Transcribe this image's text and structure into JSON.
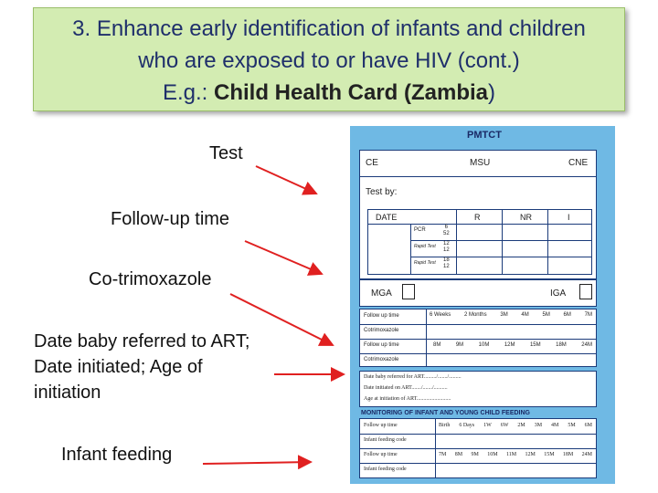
{
  "title": {
    "line1": "3. Enhance early identification of infants and children",
    "line2": "who are exposed to or have HIV (cont.)",
    "line3_prefix": "E.g.: ",
    "line3_bold": "Child Health Card (Zambia",
    "line3_suffix": ")"
  },
  "labels": {
    "test": "Test",
    "followup": "Follow-up time",
    "cotrim": "Co-trimoxazole",
    "referred_1": "Date baby referred to ART;",
    "referred_2": "Date initiated; Age of",
    "referred_3": "initiation",
    "feeding": "Infant feeding"
  },
  "card": {
    "title": "PMTCT",
    "row1": [
      "CE",
      "MSU",
      "CNE"
    ],
    "test_by": "Test by:",
    "test_header": [
      "DATE",
      "R",
      "NR",
      "I"
    ],
    "tests": [
      {
        "name": "PCR",
        "num": "6",
        "den": "52"
      },
      {
        "name": "Rapid Test",
        "num": "12",
        "den": "12"
      },
      {
        "name": "Rapid Test",
        "num": "18",
        "den": "12"
      }
    ],
    "mga": "MGA",
    "iga": "IGA",
    "fu_label": "Follow up time",
    "fu1": [
      "6 Weeks",
      "2 Months",
      "3M",
      "4M",
      "5M",
      "6M",
      "7M"
    ],
    "cotrim_label": "Cotrimoxazole",
    "fu2": [
      "8M",
      "9M",
      "10M",
      "12M",
      "15M",
      "18M",
      "24M"
    ],
    "art1": "Date baby referred for ART........./......./.........",
    "art2": "Date initiated on ART......./......./..........",
    "art3": "Age at initiation of ART.........................",
    "monitor_title": "MONITORING OF INFANT AND YOUNG CHILD FEEDING",
    "feed_fu": [
      "Birth",
      "6 Days",
      "1W",
      "6W",
      "2M",
      "3M",
      "4M",
      "5M",
      "6M"
    ],
    "feed_code": "Infant feeding code",
    "feed_fu2": [
      "7M",
      "8M",
      "9M",
      "10M",
      "11M",
      "12M",
      "15M",
      "18M",
      "24M"
    ]
  }
}
